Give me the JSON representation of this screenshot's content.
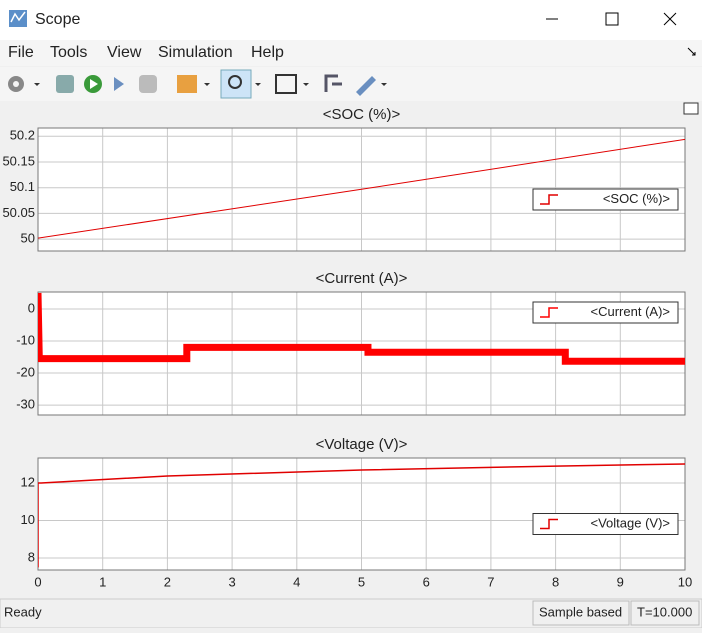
{
  "window": {
    "title": "Scope"
  },
  "menu": [
    "File",
    "Tools",
    "View",
    "Simulation",
    "Help"
  ],
  "status": [
    "Ready",
    "Sample based",
    "T=10.000"
  ],
  "chart_data": [
    {
      "type": "line",
      "title": "<SOC (%)>",
      "x": [
        0,
        5,
        10
      ],
      "series": [
        {
          "name": "<SOC (%)>",
          "color": "#e00000",
          "values": [
            50.002,
            50.097,
            50.194
          ]
        }
      ],
      "xlim": [
        0,
        10
      ],
      "ylim": [
        49.977,
        50.216
      ],
      "xticks": [
        0,
        1,
        2,
        3,
        4,
        5,
        6,
        7,
        8,
        9,
        10
      ],
      "yticks": [
        50,
        50.05,
        50.1,
        50.15,
        50.2
      ],
      "grid": true,
      "legend": "center right",
      "show_xtick_labels": false,
      "line_width": 1
    },
    {
      "type": "line",
      "title": "<Current (A)>",
      "x": [
        0,
        0.02,
        2.3,
        2.3,
        5.1,
        5.1,
        8.15,
        8.15,
        10
      ],
      "series": [
        {
          "name": "<Current (A)>",
          "color": "#ff0000",
          "values": [
            5,
            -15.5,
            -15.5,
            -12,
            -12,
            -13.5,
            -13.5,
            -16.3,
            -16.3
          ]
        }
      ],
      "xlim": [
        0,
        10
      ],
      "ylim": [
        -33.1,
        5.3
      ],
      "xticks": [
        0,
        1,
        2,
        3,
        4,
        5,
        6,
        7,
        8,
        9,
        10
      ],
      "yticks": [
        -30,
        -20,
        -10,
        0
      ],
      "grid": true,
      "legend": "upper right",
      "show_xtick_labels": false,
      "line_width": 7
    },
    {
      "type": "line",
      "title": "<Voltage (V)>",
      "x": [
        0,
        0,
        0.05,
        2,
        5,
        8,
        10
      ],
      "series": [
        {
          "name": "<Voltage (V)>",
          "color": "#e00000",
          "values": [
            7.5,
            12,
            12,
            12.37,
            12.69,
            12.9,
            13.01
          ]
        }
      ],
      "xlim": [
        0,
        10
      ],
      "ylim": [
        7.36,
        13.33
      ],
      "xticks": [
        0,
        1,
        2,
        3,
        4,
        5,
        6,
        7,
        8,
        9,
        10
      ],
      "yticks": [
        8,
        10,
        12
      ],
      "grid": true,
      "legend": "center right",
      "show_xtick_labels": true,
      "line_width": 1.5
    }
  ]
}
